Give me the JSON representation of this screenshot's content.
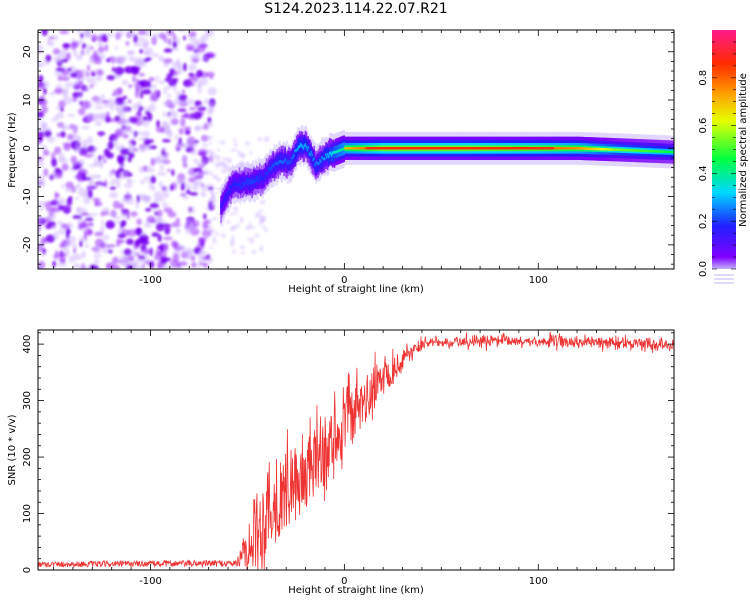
{
  "title": "S124.2023.114.22.07.R21",
  "colors": {
    "snr_line": "#ee3333",
    "axis": "#000000",
    "spectro_noise": "#9b30ff",
    "spectro_strong": "#7700ee"
  },
  "chart_data": [
    {
      "type": "heatmap",
      "title": "S124.2023.114.22.07.R21",
      "xlabel": "Height of straight line (km)",
      "ylabel": "Frequency (Hz)",
      "xlim": [
        -158,
        170
      ],
      "ylim": [
        -25,
        24.5
      ],
      "xticks": [
        -100,
        0,
        100
      ],
      "yticks": [
        -20,
        -10,
        0,
        10,
        20
      ],
      "xtick_labels": [
        "-100",
        "0",
        "100"
      ],
      "ytick_labels": [
        "-20",
        "-10",
        "0",
        "10",
        "20"
      ],
      "grid": false,
      "colorbar": {
        "label": "Normalized spectral amplitude",
        "range": [
          0,
          1
        ],
        "ticks": [
          0.0,
          0.2,
          0.4,
          0.6,
          0.8
        ],
        "tick_labels": [
          "0.0",
          "0.2",
          "0.4",
          "0.6",
          "0.8"
        ],
        "colormap": "rainbow (purple → blue → cyan → green → yellow → orange → red → pink)"
      },
      "noise_region_x": [
        -158,
        -68
      ],
      "signal_track": [
        {
          "x": -64,
          "f": -12,
          "a": 0.25
        },
        {
          "x": -58,
          "f": -7.5,
          "a": 0.3
        },
        {
          "x": -48,
          "f": -7,
          "a": 0.35
        },
        {
          "x": -42,
          "f": -6,
          "a": 0.3
        },
        {
          "x": -38,
          "f": -4,
          "a": 0.35
        },
        {
          "x": -33,
          "f": -2.5,
          "a": 0.4
        },
        {
          "x": -28,
          "f": -3,
          "a": 0.35
        },
        {
          "x": -24,
          "f": 0.5,
          "a": 0.5
        },
        {
          "x": -20,
          "f": 0.5,
          "a": 0.45
        },
        {
          "x": -15,
          "f": -3.5,
          "a": 0.4
        },
        {
          "x": -10,
          "f": -1.5,
          "a": 0.45
        },
        {
          "x": -5,
          "f": -0.8,
          "a": 0.6
        },
        {
          "x": 0,
          "f": 0,
          "a": 0.7
        },
        {
          "x": 20,
          "f": 0,
          "a": 0.85
        },
        {
          "x": 60,
          "f": 0,
          "a": 0.85
        },
        {
          "x": 100,
          "f": 0,
          "a": 0.8
        },
        {
          "x": 120,
          "f": 0,
          "a": 0.75
        },
        {
          "x": 140,
          "f": -0.3,
          "a": 0.55
        },
        {
          "x": 170,
          "f": -0.8,
          "a": 0.45
        }
      ]
    },
    {
      "type": "line",
      "xlabel": "Height of straight line (km)",
      "ylabel": "SNR (10 * v/v)",
      "xlim": [
        -158,
        170
      ],
      "ylim": [
        0,
        425
      ],
      "xticks": [
        -100,
        0,
        100
      ],
      "yticks": [
        0,
        100,
        200,
        300,
        400
      ],
      "xtick_labels": [
        "-100",
        "0",
        "100"
      ],
      "ytick_labels": [
        "0",
        "100",
        "200",
        "300",
        "400"
      ],
      "grid": false,
      "trend": {
        "x": [
          -158,
          -55,
          -50,
          -40,
          -30,
          -20,
          -10,
          0,
          10,
          20,
          30,
          40,
          60,
          100,
          140,
          170
        ],
        "snr": [
          10,
          12,
          40,
          90,
          130,
          160,
          205,
          250,
          290,
          340,
          375,
          400,
          405,
          405,
          402,
          400
        ]
      },
      "noise_amplitude": {
        "x": [
          -158,
          -55,
          -45,
          -20,
          0,
          20,
          40,
          170
        ],
        "amp": [
          5,
          6,
          70,
          65,
          55,
          35,
          12,
          12
        ]
      }
    }
  ]
}
